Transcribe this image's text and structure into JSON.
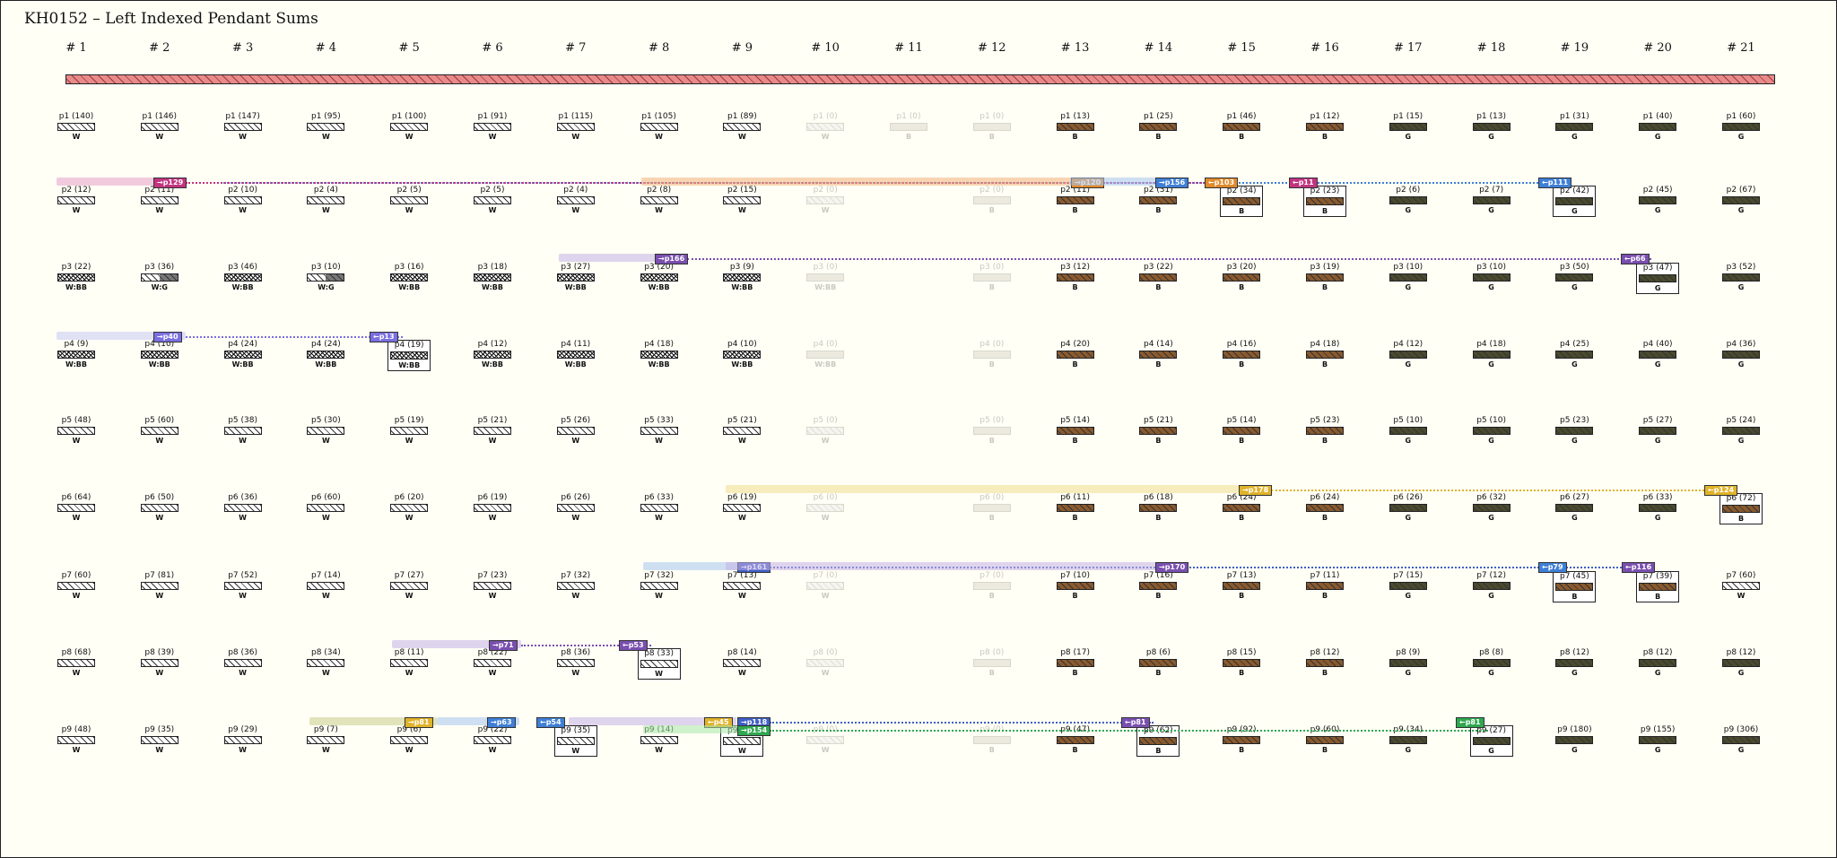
{
  "title": "KH0152 – Left Indexed Pendant Sums",
  "columns": [
    "# 1",
    "# 2",
    "# 3",
    "# 4",
    "# 5",
    "# 6",
    "# 7",
    "# 8",
    "# 9",
    "# 10",
    "# 11",
    "# 12",
    "# 13",
    "# 14",
    "# 15",
    "# 16",
    "# 17",
    "# 18",
    "# 19",
    "# 20",
    "# 21"
  ],
  "rows": [
    {
      "p": "p1",
      "vals": [
        "140",
        "146",
        "147",
        "95",
        "100",
        "91",
        "115",
        "105",
        "89",
        "0",
        "0",
        "0",
        "13",
        "25",
        "46",
        "12",
        "15",
        "13",
        "31",
        "40",
        "60"
      ],
      "cols": [
        "W",
        "W",
        "W",
        "W",
        "W",
        "W",
        "W",
        "W",
        "W",
        "W",
        "B",
        "B",
        "B",
        "B",
        "B",
        "B",
        "G",
        "G",
        "G",
        "G",
        "G"
      ]
    },
    {
      "p": "p2",
      "vals": [
        "12",
        "11",
        "10",
        "4",
        "5",
        "5",
        "4",
        "8",
        "15",
        "0",
        "",
        "0",
        "11",
        "31",
        "34",
        "23",
        "6",
        "7",
        "42",
        "45",
        "67"
      ],
      "cols": [
        "W",
        "W",
        "W",
        "W",
        "W",
        "W",
        "W",
        "W",
        "W",
        "W",
        "",
        "B",
        "B",
        "B",
        "B",
        "B",
        "G",
        "G",
        "G",
        "G",
        "G"
      ]
    },
    {
      "p": "p3",
      "vals": [
        "22",
        "36",
        "46",
        "10",
        "16",
        "18",
        "27",
        "20",
        "9",
        "0",
        "",
        "0",
        "12",
        "22",
        "20",
        "19",
        "10",
        "10",
        "50",
        "47",
        "52"
      ],
      "cols": [
        "W:BB",
        "W:G",
        "W:BB",
        "W:G",
        "W:BB",
        "W:BB",
        "W:BB",
        "W:BB",
        "W:BB",
        "W:BB",
        "",
        "B",
        "B",
        "B",
        "B",
        "B",
        "G",
        "G",
        "G",
        "G",
        "G"
      ]
    },
    {
      "p": "p4",
      "vals": [
        "9",
        "10",
        "24",
        "24",
        "19",
        "12",
        "11",
        "18",
        "10",
        "0",
        "",
        "0",
        "20",
        "14",
        "16",
        "18",
        "12",
        "18",
        "25",
        "40",
        "36"
      ],
      "cols": [
        "W:BB",
        "W:BB",
        "W:BB",
        "W:BB",
        "W:BB",
        "W:BB",
        "W:BB",
        "W:BB",
        "W:BB",
        "W:BB",
        "",
        "B",
        "B",
        "B",
        "B",
        "B",
        "G",
        "G",
        "G",
        "G",
        "G"
      ]
    },
    {
      "p": "p5",
      "vals": [
        "48",
        "60",
        "38",
        "30",
        "19",
        "21",
        "26",
        "33",
        "21",
        "0",
        "",
        "0",
        "14",
        "21",
        "14",
        "23",
        "10",
        "10",
        "23",
        "27",
        "24"
      ],
      "cols": [
        "W",
        "W",
        "W",
        "W",
        "W",
        "W",
        "W",
        "W",
        "W",
        "W",
        "",
        "B",
        "B",
        "B",
        "B",
        "B",
        "G",
        "G",
        "G",
        "G",
        "G"
      ]
    },
    {
      "p": "p6",
      "vals": [
        "64",
        "50",
        "36",
        "60",
        "20",
        "19",
        "26",
        "33",
        "19",
        "0",
        "",
        "0",
        "11",
        "18",
        "24",
        "24",
        "26",
        "32",
        "27",
        "33",
        "72"
      ],
      "cols": [
        "W",
        "W",
        "W",
        "W",
        "W",
        "W",
        "W",
        "W",
        "W",
        "W",
        "",
        "B",
        "B",
        "B",
        "B",
        "B",
        "G",
        "G",
        "G",
        "G",
        "B"
      ]
    },
    {
      "p": "p7",
      "vals": [
        "60",
        "81",
        "52",
        "14",
        "27",
        "23",
        "32",
        "32",
        "13",
        "0",
        "",
        "0",
        "10",
        "16",
        "13",
        "11",
        "15",
        "12",
        "45",
        "39",
        "60"
      ],
      "cols": [
        "W",
        "W",
        "W",
        "W",
        "W",
        "W",
        "W",
        "W",
        "W",
        "W",
        "",
        "B",
        "B",
        "B",
        "B",
        "B",
        "G",
        "G",
        "B",
        "B",
        "W"
      ]
    },
    {
      "p": "p8",
      "vals": [
        "68",
        "39",
        "36",
        "34",
        "11",
        "22",
        "36",
        "33",
        "14",
        "0",
        "",
        "0",
        "17",
        "6",
        "15",
        "12",
        "9",
        "8",
        "12",
        "12",
        "12"
      ],
      "cols": [
        "W",
        "W",
        "W",
        "W",
        "W",
        "W",
        "W",
        "W",
        "W",
        "W",
        "",
        "B",
        "B",
        "B",
        "B",
        "B",
        "G",
        "G",
        "G",
        "G",
        "G"
      ]
    },
    {
      "p": "p9",
      "vals": [
        "48",
        "35",
        "29",
        "7",
        "6",
        "22",
        "35",
        "14",
        "13",
        "0",
        "",
        "0",
        "47",
        "62",
        "92",
        "60",
        "34",
        "27",
        "180",
        "155",
        "306"
      ],
      "cols": [
        "W",
        "W",
        "W",
        "W",
        "W",
        "W",
        "W",
        "W",
        "W",
        "W",
        "",
        "B",
        "B",
        "B",
        "B",
        "B",
        "G",
        "G",
        "G",
        "G",
        "G"
      ]
    }
  ],
  "tags": [
    {
      "text": "→p129",
      "color": "#c2337f"
    },
    {
      "text": "→p120",
      "color": "#e08a2a"
    },
    {
      "text": "→p156",
      "color": "#3f7fd6"
    },
    {
      "text": "←p103",
      "color": "#e08a2a"
    },
    {
      "text": "←p11",
      "color": "#c2337f"
    },
    {
      "text": "←p111",
      "color": "#3f7fd6"
    },
    {
      "text": "→p166",
      "color": "#7a4fb0"
    },
    {
      "text": "←p66",
      "color": "#7a4fb0"
    },
    {
      "text": "→p40",
      "color": "#7a6fe0"
    },
    {
      "text": "←p13",
      "color": "#7a6fe0"
    },
    {
      "text": "→p178",
      "color": "#e0b32a"
    },
    {
      "text": "←p124",
      "color": "#e0b32a"
    },
    {
      "text": "→p161",
      "color": "#3f5fc6"
    },
    {
      "text": "→p170",
      "color": "#7a4fb0"
    },
    {
      "text": "←p79",
      "color": "#3f7fd6"
    },
    {
      "text": "←p116",
      "color": "#7a4fb0"
    },
    {
      "text": "→p71",
      "color": "#7a4fb0"
    },
    {
      "text": "←p53",
      "color": "#7a4fb0"
    },
    {
      "text": "→p81",
      "color": "#e0b32a"
    },
    {
      "text": "→p63",
      "color": "#3f7fd6"
    },
    {
      "text": "←p54",
      "color": "#3f7fd6"
    },
    {
      "text": "←p45",
      "color": "#e0b32a"
    },
    {
      "text": "→p118",
      "color": "#3f5fc6"
    },
    {
      "text": "→p154",
      "color": "#2fa84f"
    },
    {
      "text": "←p81",
      "color": "#7a4fb0"
    },
    {
      "text": "←p81",
      "color": "#2fa84f"
    }
  ]
}
